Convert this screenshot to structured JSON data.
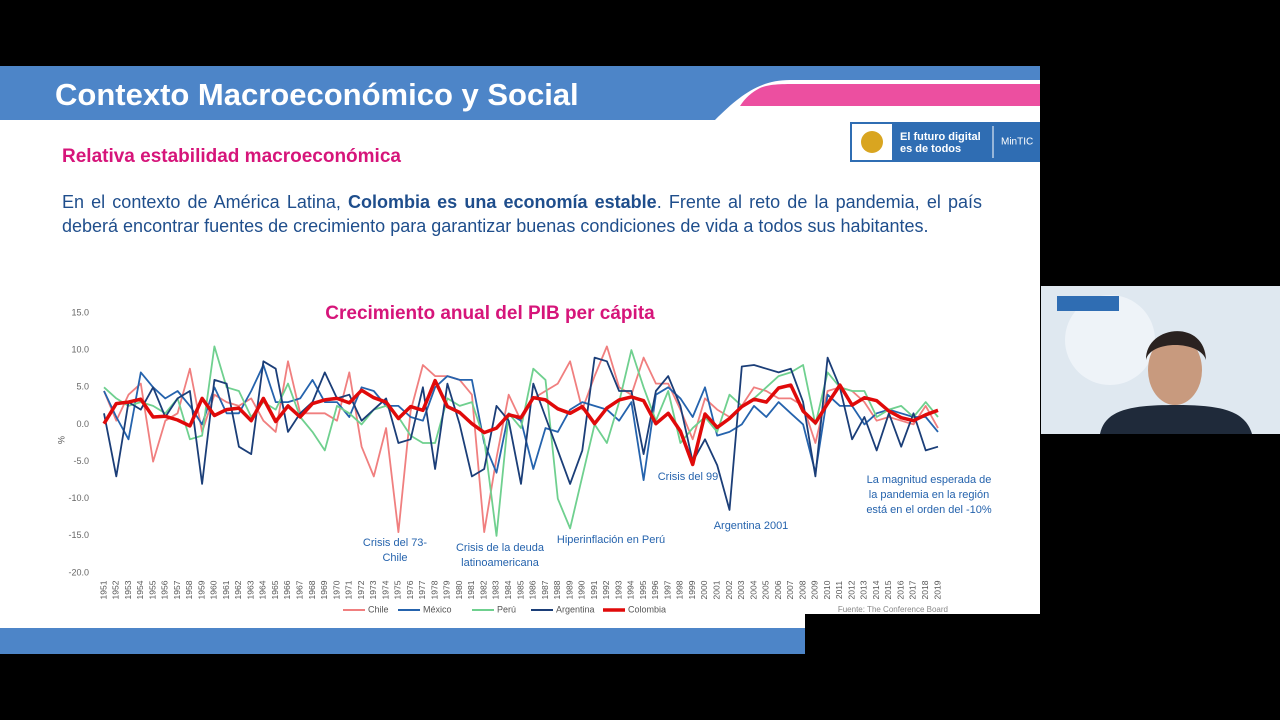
{
  "header": {
    "title": "Contexto Macroeconómico y Social"
  },
  "logo": {
    "line1": "El futuro digital",
    "line2": "es de todos",
    "brand": "MinTIC"
  },
  "subtitle": "Relativa estabilidad macroeconómica",
  "paragraph": {
    "before": "En el contexto de América Latina,",
    "bold": "Colombia es una economía estable",
    "after": ". Frente al reto de la pandemia, el país deberá encontrar fuentes de crecimiento para garantizar buenas condiciones de vida a todos sus habitantes."
  },
  "chart_data": {
    "type": "line",
    "title": "Crecimiento anual del PIB per cápita",
    "ylabel": "%",
    "source": "Fuente: The Conference Board",
    "legend": "bottom",
    "ylim": [
      -20,
      15
    ],
    "yticks": [
      {
        "value": 15,
        "label": "15.0"
      },
      {
        "value": 10,
        "label": "10.0"
      },
      {
        "value": 5,
        "label": "5.0"
      },
      {
        "value": 0,
        "label": "0.0"
      },
      {
        "value": -5,
        "label": "-5.0"
      },
      {
        "value": -10,
        "label": "-10.0"
      },
      {
        "value": -15,
        "label": "-15.0"
      },
      {
        "value": -20,
        "label": "-20.0"
      }
    ],
    "categories": [
      "1951",
      "1952",
      "1953",
      "1954",
      "1955",
      "1956",
      "1957",
      "1958",
      "1959",
      "1960",
      "1961",
      "1962",
      "1963",
      "1964",
      "1965",
      "1966",
      "1967",
      "1968",
      "1969",
      "1970",
      "1971",
      "1972",
      "1973",
      "1974",
      "1975",
      "1976",
      "1977",
      "1978",
      "1979",
      "1980",
      "1981",
      "1982",
      "1983",
      "1984",
      "1985",
      "1986",
      "1987",
      "1988",
      "1989",
      "1990",
      "1991",
      "1992",
      "1993",
      "1994",
      "1995",
      "1996",
      "1997",
      "1998",
      "1999",
      "2000",
      "2001",
      "2002",
      "2003",
      "2004",
      "2005",
      "2006",
      "2007",
      "2008",
      "2009",
      "2010",
      "2011",
      "2012",
      "2013",
      "2014",
      "2015",
      "2016",
      "2017",
      "2018",
      "2019"
    ],
    "series": [
      {
        "name": "Chile",
        "color": "#f07f7f",
        "width": 1.8,
        "values": [
          4.5,
          0.5,
          4.0,
          5.5,
          -5.0,
          0.5,
          1.5,
          7.5,
          -1.0,
          4.0,
          3.0,
          2.5,
          3.5,
          0.5,
          -1.0,
          8.5,
          1.5,
          1.5,
          1.5,
          0.5,
          7.0,
          -3.0,
          -7.0,
          -0.5,
          -14.5,
          1.8,
          8.0,
          6.5,
          6.5,
          6.0,
          4.0,
          -14.5,
          -4.5,
          4.0,
          0.5,
          3.5,
          4.5,
          5.5,
          8.5,
          2.0,
          6.5,
          10.5,
          5.0,
          4.0,
          9.0,
          5.5,
          5.5,
          2.0,
          -2.0,
          3.5,
          2.0,
          1.0,
          2.5,
          5.0,
          4.5,
          3.5,
          3.5,
          2.5,
          -2.5,
          4.5,
          5.0,
          4.5,
          3.0,
          0.5,
          1.0,
          0.5,
          0.0,
          2.5,
          -0.5
        ]
      },
      {
        "name": "México",
        "color": "#2563ad",
        "width": 1.8,
        "values": [
          4.5,
          1.0,
          -2.0,
          7.0,
          5.0,
          3.5,
          4.5,
          2.5,
          0.0,
          5.0,
          1.5,
          1.5,
          4.5,
          8.0,
          3.0,
          3.0,
          3.5,
          6.0,
          3.0,
          3.0,
          1.0,
          5.0,
          4.5,
          2.5,
          2.5,
          1.0,
          0.5,
          5.0,
          6.5,
          6.0,
          6.0,
          -2.5,
          -6.5,
          1.5,
          0.5,
          -6.0,
          -0.5,
          -1.0,
          2.0,
          3.0,
          2.5,
          2.0,
          0.5,
          3.0,
          -7.5,
          4.0,
          5.0,
          3.5,
          1.0,
          5.0,
          -1.5,
          -1.0,
          0.0,
          2.5,
          1.0,
          3.0,
          1.5,
          0.0,
          -6.5,
          4.0,
          2.5,
          2.5,
          0.0,
          1.5,
          2.0,
          1.5,
          1.0,
          1.0,
          -1.0
        ]
      },
      {
        "name": "Perú",
        "color": "#6fd08f",
        "width": 1.8,
        "values": [
          5.0,
          3.5,
          2.5,
          3.0,
          2.5,
          1.5,
          3.5,
          -2.0,
          -1.5,
          10.5,
          5.0,
          4.5,
          1.0,
          3.0,
          2.0,
          5.5,
          1.0,
          -1.0,
          -3.5,
          2.5,
          1.5,
          0.0,
          2.0,
          2.5,
          1.0,
          -1.5,
          -2.5,
          -2.5,
          3.5,
          2.5,
          3.0,
          -2.0,
          -15.0,
          1.5,
          -0.5,
          7.5,
          6.0,
          -10.0,
          -14.0,
          -7.0,
          0.0,
          -2.5,
          3.0,
          10.0,
          5.0,
          0.5,
          4.5,
          -2.5,
          -0.5,
          1.0,
          -1.0,
          4.0,
          2.5,
          3.5,
          5.0,
          6.5,
          7.0,
          8.0,
          0.0,
          7.0,
          5.0,
          4.5,
          4.5,
          1.0,
          2.0,
          2.5,
          1.0,
          3.0,
          1.0
        ]
      },
      {
        "name": "Argentina",
        "color": "#1b3e78",
        "width": 1.8,
        "values": [
          1.5,
          -7.0,
          3.0,
          2.0,
          5.0,
          1.0,
          3.5,
          4.5,
          -8.0,
          6.0,
          5.5,
          -3.0,
          -4.0,
          8.5,
          7.5,
          -1.0,
          1.5,
          3.0,
          7.0,
          3.5,
          4.0,
          0.5,
          2.0,
          3.5,
          -2.5,
          -2.0,
          5.0,
          -6.0,
          5.5,
          0.0,
          -7.0,
          -6.0,
          2.5,
          0.5,
          -8.0,
          5.5,
          1.0,
          -3.5,
          -8.0,
          -3.5,
          9.0,
          8.5,
          4.5,
          4.5,
          -4.0,
          4.5,
          6.5,
          2.5,
          -5.0,
          -2.0,
          -5.5,
          -11.5,
          7.8,
          8.0,
          7.5,
          7.0,
          7.5,
          3.0,
          -7.0,
          9.0,
          5.0,
          -2.0,
          1.0,
          -3.5,
          1.5,
          -3.0,
          1.5,
          -3.5,
          -3.0
        ]
      },
      {
        "name": "Colombia",
        "color": "#e00a0a",
        "width": 3.5,
        "values": [
          0.1,
          2.8,
          3.0,
          3.4,
          1.0,
          1.1,
          0.6,
          -0.2,
          3.5,
          1.2,
          2.0,
          2.2,
          0.5,
          3.5,
          0.4,
          2.5,
          1.0,
          2.8,
          3.3,
          3.5,
          2.9,
          4.6,
          3.6,
          3.0,
          0.8,
          2.4,
          1.9,
          5.9,
          2.4,
          1.6,
          0.1,
          -1.1,
          -0.5,
          1.3,
          0.9,
          3.6,
          3.3,
          2.1,
          1.5,
          2.4,
          0.1,
          2.2,
          3.3,
          3.7,
          3.2,
          0.1,
          1.5,
          -0.9,
          -5.4,
          1.4,
          -0.4,
          0.8,
          2.4,
          3.4,
          3.0,
          4.9,
          5.3,
          1.8,
          0.2,
          2.8,
          5.3,
          2.6,
          3.6,
          3.2,
          1.8,
          0.9,
          0.5,
          1.3,
          1.9
        ]
      }
    ],
    "annotations": [
      [
        "Crisis del 73-",
        "Chile"
      ],
      [
        "Crisis de la deuda",
        "latinoamericana"
      ],
      [
        "Hiperinflación en Perú"
      ],
      [
        "Crisis del 99"
      ],
      [
        "Argentina 2001"
      ],
      [
        "La magnitud esperada de",
        "la pandemia en la región",
        "está en el orden del -10%"
      ]
    ]
  }
}
